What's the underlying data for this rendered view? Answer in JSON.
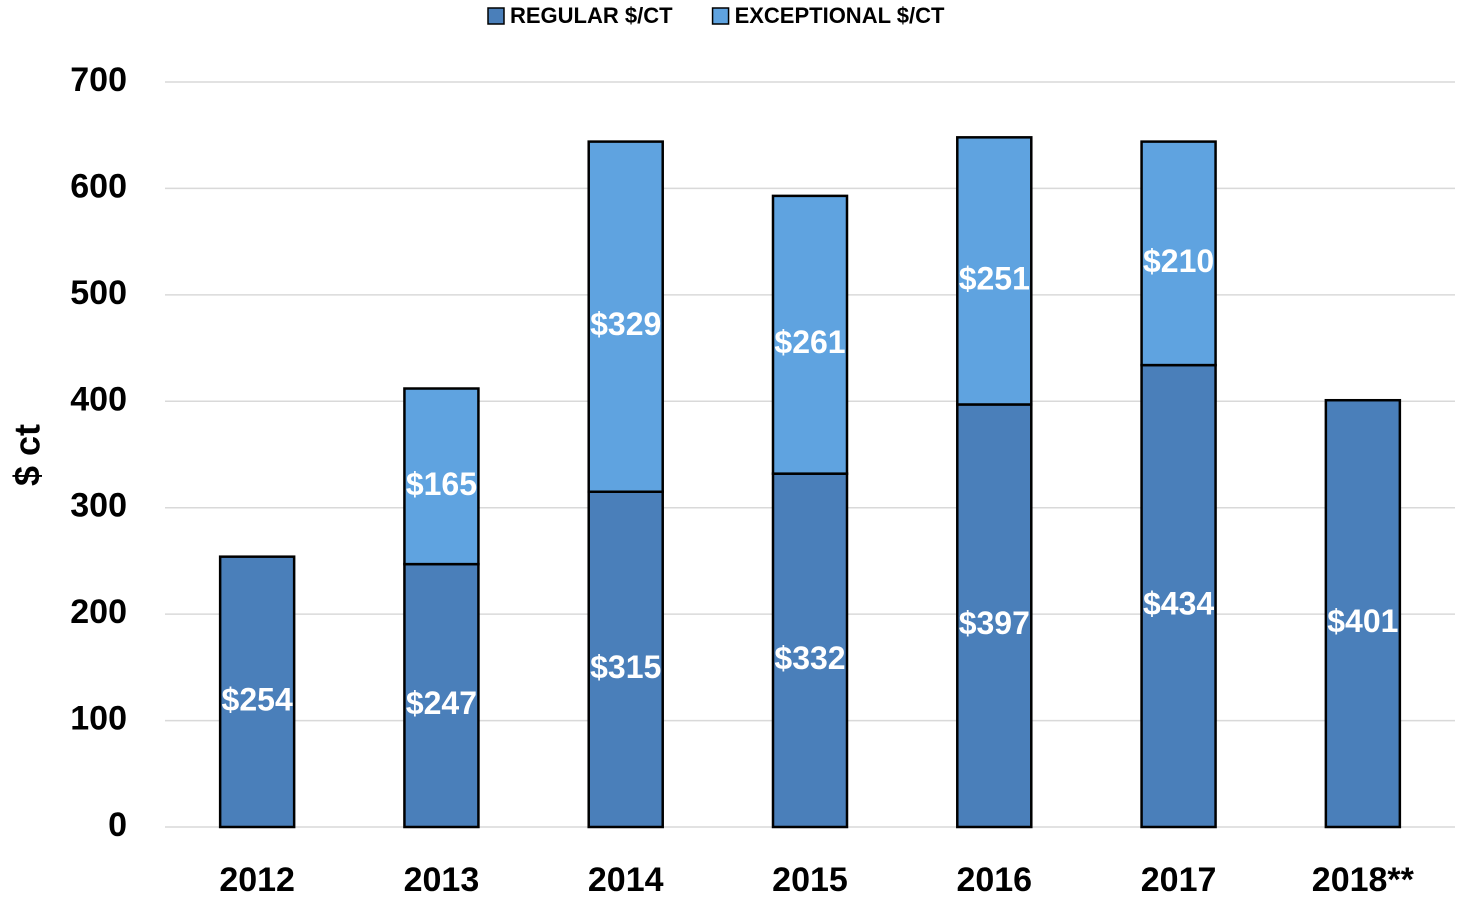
{
  "chart_data": {
    "type": "stacked_bar",
    "y_label": "$ ct",
    "categories": [
      "2012",
      "2013",
      "2014",
      "2015",
      "2016",
      "2017",
      "2018**"
    ],
    "series": [
      {
        "name": "REGULAR $/CT",
        "color": "#4a7fba",
        "values": [
          254,
          247,
          315,
          332,
          397,
          434,
          401
        ],
        "value_labels": [
          "$254",
          "$247",
          "$315",
          "$332",
          "$397",
          "$434",
          "$401"
        ]
      },
      {
        "name": "EXCEPTIONAL $/CT",
        "color": "#5fa3e0",
        "values": [
          null,
          165,
          329,
          261,
          251,
          210,
          null
        ],
        "value_labels": [
          null,
          "$165",
          "$329",
          "$261",
          "$251",
          "$210",
          null
        ]
      }
    ],
    "ylim": [
      0,
      700
    ],
    "yticks": [
      0,
      100,
      200,
      300,
      400,
      500,
      600,
      700
    ],
    "grid": true,
    "legend": "top"
  }
}
